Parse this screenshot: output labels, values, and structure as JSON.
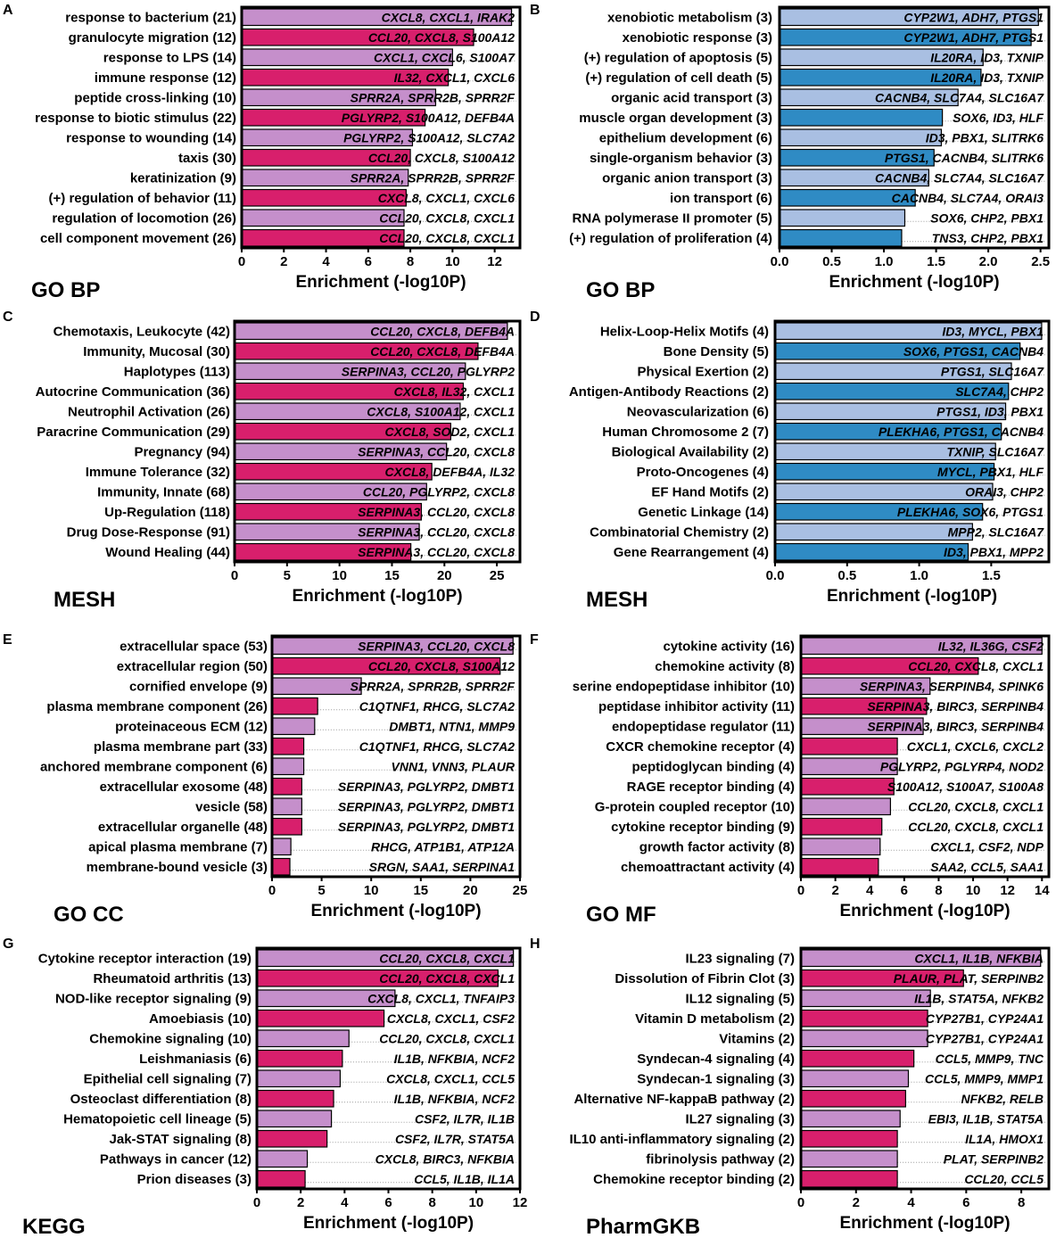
{
  "figure": {
    "colors": {
      "light_pink": "#c58fcb",
      "magenta": "#d81f6c",
      "light_blue": "#a9bfe2",
      "blue": "#2f8bc4",
      "axis": "#000000",
      "dotted_leader": "#999999"
    }
  },
  "chart_data": [
    {
      "panel": "A",
      "type": "bar",
      "orientation": "horizontal",
      "ontology_label": "GO BP",
      "xlabel": "Enrichment (-log10P)",
      "xlim": [
        0,
        13.2
      ],
      "xticks": [
        "0",
        "2",
        "4",
        "6",
        "8",
        "10",
        "12"
      ],
      "xtick_values": [
        0,
        2,
        4,
        6,
        8,
        10,
        12
      ],
      "categories": [
        "response to bacterium (21)",
        "granulocyte migration (12)",
        "response to LPS (14)",
        "immune response (12)",
        "peptide cross-linking (10)",
        "response to biotic stimulus (22)",
        "response to wounding (14)",
        "taxis (30)",
        "keratinization (9)",
        "(+) regulation of behavior (11)",
        "regulation of locomotion (26)",
        "cell component movement (26)"
      ],
      "values": [
        12.8,
        11.0,
        10.0,
        9.8,
        9.2,
        8.7,
        8.1,
        8.0,
        7.9,
        7.8,
        7.7,
        7.7
      ],
      "colors": [
        "light_pink",
        "magenta",
        "light_pink",
        "magenta",
        "light_pink",
        "magenta",
        "light_pink",
        "magenta",
        "light_pink",
        "magenta",
        "light_pink",
        "magenta"
      ],
      "genes": [
        "CXCL8, CXCL1, IRAK2",
        "CCL20, CXCL8, S100A12",
        "CXCL1, CXCL6, S100A7",
        "IL32, CXCL1, CXCL6",
        "SPRR2A, SPRR2B, SPRR2F",
        "PGLYRP2, S100A12, DEFB4A",
        "PGLYRP2, S100A12, SLC7A2",
        "CCL20, CXCL8, S100A12",
        "SPRR2A, SPRR2B, SPRR2F",
        "CXCL8, CXCL1, CXCL6",
        "CCL20, CXCL8, CXCL1",
        "CCL20, CXCL8, CXCL1"
      ]
    },
    {
      "panel": "B",
      "type": "bar",
      "orientation": "horizontal",
      "ontology_label": "GO BP",
      "xlabel": "Enrichment (-log10P)",
      "xlim": [
        0,
        2.58
      ],
      "xticks": [
        "0.0",
        "0.5",
        "1.0",
        "1.5",
        "2.0",
        "2.5"
      ],
      "xtick_values": [
        0,
        0.5,
        1.0,
        1.5,
        2.0,
        2.5
      ],
      "categories": [
        "xenobiotic metabolism (3)",
        "xenobiotic response (3)",
        "(+) regulation of apoptosis (5)",
        "(+) regulation of cell death (5)",
        "organic acid transport (3)",
        "muscle organ development (3)",
        "epithelium development (6)",
        "single-organism behavior (3)",
        "organic anion transport (3)",
        "ion transport (6)",
        "RNA polymerase II promoter (5)",
        "(+) regulation of proliferation (4)"
      ],
      "values": [
        2.48,
        2.41,
        1.95,
        1.93,
        1.71,
        1.56,
        1.55,
        1.48,
        1.43,
        1.3,
        1.2,
        1.17
      ],
      "colors": [
        "light_blue",
        "blue",
        "light_blue",
        "blue",
        "light_blue",
        "blue",
        "light_blue",
        "blue",
        "light_blue",
        "blue",
        "light_blue",
        "blue"
      ],
      "genes": [
        "CYP2W1, ADH7, PTGS1",
        "CYP2W1, ADH7, PTGS1",
        "IL20RA, ID3, TXNIP",
        "IL20RA, ID3, TXNIP",
        "CACNB4, SLC7A4, SLC16A7",
        "SOX6, ID3, HLF",
        "ID3, PBX1, SLITRK6",
        "PTGS1, CACNB4, SLITRK6",
        "CACNB4, SLC7A4, SLC16A7",
        "CACNB4, SLC7A4, ORAI3",
        "SOX6, CHP2, PBX1",
        "TNS3, CHP2, PBX1"
      ]
    },
    {
      "panel": "C",
      "type": "bar",
      "orientation": "horizontal",
      "ontology_label": "MESH",
      "xlabel": "Enrichment (-log10P)",
      "xlim": [
        0,
        27.2
      ],
      "xticks": [
        "0",
        "5",
        "10",
        "15",
        "20",
        "25"
      ],
      "xtick_values": [
        0,
        5,
        10,
        15,
        20,
        25
      ],
      "categories": [
        "Chemotaxis, Leukocyte (42)",
        "Immunity, Mucosal (30)",
        "Haplotypes (113)",
        "Autocrine Communication (36)",
        "Neutrophil Activation (26)",
        "Paracrine Communication (29)",
        "Pregnancy (94)",
        "Immune Tolerance (32)",
        "Immunity, Innate (68)",
        "Up-Regulation (118)",
        "Drug Dose-Response (91)",
        "Wound Healing (44)"
      ],
      "values": [
        26.0,
        23.2,
        22.0,
        21.8,
        21.5,
        20.6,
        20.2,
        18.8,
        18.3,
        17.8,
        17.6,
        16.8
      ],
      "colors": [
        "light_pink",
        "magenta",
        "light_pink",
        "magenta",
        "light_pink",
        "magenta",
        "light_pink",
        "magenta",
        "light_pink",
        "magenta",
        "light_pink",
        "magenta"
      ],
      "genes": [
        "CCL20, CXCL8, DEFB4A",
        "CCL20, CXCL8, DEFB4A",
        "SERPINA3, CCL20, PGLYRP2",
        "CXCL8, IL32, CXCL1",
        "CXCL8, S100A12, CXCL1",
        "CXCL8, SOD2, CXCL1",
        "SERPINA3, CCL20, CXCL8",
        "CXCL8, DEFB4A, IL32",
        "CCL20, PGLYRP2, CXCL8",
        "SERPINA3, CCL20, CXCL8",
        "SERPINA3, CCL20, CXCL8",
        "SERPINA3, CCL20, CXCL8"
      ]
    },
    {
      "panel": "D",
      "type": "bar",
      "orientation": "horizontal",
      "ontology_label": "MESH",
      "xlabel": "Enrichment (-log10P)",
      "xlim": [
        0,
        1.9
      ],
      "xticks": [
        "0.0",
        "0.5",
        "1.0",
        "1.5"
      ],
      "xtick_values": [
        0,
        0.5,
        1.0,
        1.5
      ],
      "categories": [
        "Helix-Loop-Helix Motifs (4)",
        "Bone Density (5)",
        "Physical Exertion (2)",
        "Antigen-Antibody Reactions (2)",
        "Neovascularization (6)",
        "Human Chromosome 2 (7)",
        "Biological Availability (2)",
        "Proto-Oncogenes (4)",
        "EF Hand Motifs (2)",
        "Genetic Linkage (14)",
        "Combinatorial Chemistry (2)",
        "Gene Rearrangement (4)"
      ],
      "values": [
        1.85,
        1.7,
        1.64,
        1.62,
        1.6,
        1.57,
        1.53,
        1.52,
        1.51,
        1.44,
        1.37,
        1.34
      ],
      "colors": [
        "light_blue",
        "blue",
        "light_blue",
        "blue",
        "light_blue",
        "blue",
        "light_blue",
        "blue",
        "light_blue",
        "blue",
        "light_blue",
        "blue"
      ],
      "genes": [
        "ID3, MYCL, PBX1",
        "SOX6, PTGS1, CACNB4",
        "PTGS1, SLC16A7",
        "SLC7A4, CHP2",
        "PTGS1, ID3, PBX1",
        "PLEKHA6, PTGS1, CACNB4",
        "TXNIP, SLC16A7",
        "MYCL, PBX1, HLF",
        "ORAI3, CHP2",
        "PLEKHA6, SOX6, PTGS1",
        "MPP2, SLC16A7",
        "ID3, PBX1, MPP2"
      ]
    },
    {
      "panel": "E",
      "type": "bar",
      "orientation": "horizontal",
      "ontology_label": "GO CC",
      "xlabel": "Enrichment (-log10P)",
      "xlim": [
        0,
        25.0
      ],
      "xticks": [
        "0",
        "5",
        "10",
        "15",
        "20",
        "25"
      ],
      "xtick_values": [
        0,
        5,
        10,
        15,
        20,
        25
      ],
      "categories": [
        "extracellular space (53)",
        "extracellular region (50)",
        "cornified envelope (9)",
        "plasma membrane component (26)",
        "proteinaceous ECM (12)",
        "plasma membrane part (33)",
        "anchored membrane component (6)",
        "extracellular exosome (48)",
        "vesicle (58)",
        "extracellular organelle (48)",
        "apical plasma membrane (7)",
        "membrane-bound vesicle (3)"
      ],
      "values": [
        24.3,
        23.0,
        9.0,
        4.6,
        4.3,
        3.2,
        3.2,
        3.0,
        3.0,
        3.0,
        1.9,
        1.8
      ],
      "colors": [
        "light_pink",
        "magenta",
        "light_pink",
        "magenta",
        "light_pink",
        "magenta",
        "light_pink",
        "magenta",
        "light_pink",
        "magenta",
        "light_pink",
        "magenta"
      ],
      "genes": [
        "SERPINA3, CCL20, CXCL8",
        "CCL20, CXCL8, S100A12",
        "SPRR2A, SPRR2B, SPRR2F",
        "C1QTNF1, RHCG, SLC7A2",
        "DMBT1, NTN1, MMP9",
        "C1QTNF1, RHCG, SLC7A2",
        "VNN1, VNN3, PLAUR",
        "SERPINA3, PGLYRP2, DMBT1",
        "SERPINA3, PGLYRP2, DMBT1",
        "SERPINA3, PGLYRP2, DMBT1",
        "RHCG, ATP1B1, ATP12A",
        "SRGN, SAA1, SERPINA1"
      ]
    },
    {
      "panel": "F",
      "type": "bar",
      "orientation": "horizontal",
      "ontology_label": "GO MF",
      "xlabel": "Enrichment (-log10P)",
      "xlim": [
        0,
        14.4
      ],
      "xticks": [
        "0",
        "2",
        "4",
        "6",
        "8",
        "10",
        "12",
        "14"
      ],
      "xtick_values": [
        0,
        2,
        4,
        6,
        8,
        10,
        12,
        14
      ],
      "categories": [
        "cytokine activity (16)",
        "chemokine activity (8)",
        "serine endopeptidase inhibitor (10)",
        "peptidase inhibitor activity (11)",
        "endopeptidase regulator (11)",
        "CXCR chemokine receptor (4)",
        "peptidoglycan binding (4)",
        "RAGE receptor binding (4)",
        "G-protein coupled receptor (10)",
        "cytokine receptor binding (9)",
        "growth factor activity (8)",
        "chemoattractant activity (4)"
      ],
      "values": [
        14.0,
        10.3,
        7.5,
        7.3,
        7.1,
        5.6,
        5.6,
        5.4,
        5.2,
        4.7,
        4.6,
        4.5
      ],
      "colors": [
        "light_pink",
        "magenta",
        "light_pink",
        "magenta",
        "light_pink",
        "magenta",
        "light_pink",
        "magenta",
        "light_pink",
        "magenta",
        "light_pink",
        "magenta"
      ],
      "genes": [
        "IL32, IL36G, CSF2",
        "CCL20, CXCL8, CXCL1",
        "SERPINA3, SERPINB4, SPINK6",
        "SERPINA3, BIRC3, SERPINB4",
        "SERPINA3, BIRC3, SERPINB4",
        "CXCL1, CXCL6, CXCL2",
        "PGLYRP2, PGLYRP4, NOD2",
        "S100A12, S100A7, S100A8",
        "CCL20, CXCL8, CXCL1",
        "CCL20, CXCL8, CXCL1",
        "CXCL1, CSF2, NDP",
        "SAA2, CCL5, SAA1"
      ]
    },
    {
      "panel": "G",
      "type": "bar",
      "orientation": "horizontal",
      "ontology_label": "KEGG",
      "xlabel": "Enrichment (-log10P)",
      "xlim": [
        0,
        12.0
      ],
      "xticks": [
        "0",
        "2",
        "4",
        "6",
        "8",
        "10",
        "12"
      ],
      "xtick_values": [
        0,
        2,
        4,
        6,
        8,
        10,
        12
      ],
      "categories": [
        "Cytokine receptor interaction (19)",
        "Rheumatoid arthritis (13)",
        "NOD-like receptor signaling (9)",
        "Amoebiasis (10)",
        "Chemokine signaling (10)",
        "Leishmaniasis (6)",
        "Epithelial cell signaling (7)",
        "Osteoclast differentiation (8)",
        "Hematopoietic cell lineage (5)",
        "Jak-STAT signaling (8)",
        "Pathways in cancer (12)",
        "Prion diseases (3)"
      ],
      "values": [
        11.7,
        11.0,
        6.3,
        5.8,
        4.2,
        3.9,
        3.8,
        3.5,
        3.4,
        3.2,
        2.3,
        2.2
      ],
      "colors": [
        "light_pink",
        "magenta",
        "light_pink",
        "magenta",
        "light_pink",
        "magenta",
        "light_pink",
        "magenta",
        "light_pink",
        "magenta",
        "light_pink",
        "magenta"
      ],
      "genes": [
        "CCL20, CXCL8, CXCL1",
        "CCL20, CXCL8, CXCL1",
        "CXCL8, CXCL1, TNFAIP3",
        "CXCL8, CXCL1, CSF2",
        "CCL20, CXCL8, CXCL1",
        "IL1B, NFKBIA, NCF2",
        "CXCL8, CXCL1, CCL5",
        "IL1B, NFKBIA, NCF2",
        "CSF2, IL7R, IL1B",
        "CSF2, IL7R, STAT5A",
        "CXCL8, BIRC3, NFKBIA",
        "CCL5, IL1B, IL1A"
      ]
    },
    {
      "panel": "H",
      "type": "bar",
      "orientation": "horizontal",
      "ontology_label": "PharmGKB",
      "xlabel": "Enrichment (-log10P)",
      "xlim": [
        0,
        9.0
      ],
      "xticks": [
        "0",
        "2",
        "4",
        "6",
        "8"
      ],
      "xtick_values": [
        0,
        2,
        4,
        6,
        8
      ],
      "categories": [
        "IL23 signaling (7)",
        "Dissolution of Fibrin Clot (3)",
        "IL12 signaling (5)",
        "Vitamin D metabolism (2)",
        "Vitamins (2)",
        "Syndecan-4 signaling (4)",
        "Syndecan-1 signaling (3)",
        "Alternative NF-kappaB pathway (2)",
        "IL27 signaling (3)",
        "IL10 anti-inflammatory signaling (2)",
        "fibrinolysis pathway (2)",
        "Chemokine receptor binding (2)"
      ],
      "values": [
        8.7,
        5.9,
        4.7,
        4.6,
        4.6,
        4.1,
        3.9,
        3.8,
        3.6,
        3.5,
        3.5,
        3.5
      ],
      "colors": [
        "light_pink",
        "magenta",
        "light_pink",
        "magenta",
        "light_pink",
        "magenta",
        "light_pink",
        "magenta",
        "light_pink",
        "magenta",
        "light_pink",
        "magenta"
      ],
      "genes": [
        "CXCL1, IL1B, NFKBIA",
        "PLAUR, PLAT, SERPINB2",
        "IL1B, STAT5A, NFKB2",
        "CYP27B1, CYP24A1",
        "CYP27B1, CYP24A1",
        "CCL5, MMP9, TNC",
        "CCL5, MMP9, MMP1",
        "NFKB2, RELB",
        "EBI3, IL1B, STAT5A",
        "IL1A, HMOX1",
        "PLAT, SERPINB2",
        "CCL20, CCL5"
      ]
    }
  ]
}
